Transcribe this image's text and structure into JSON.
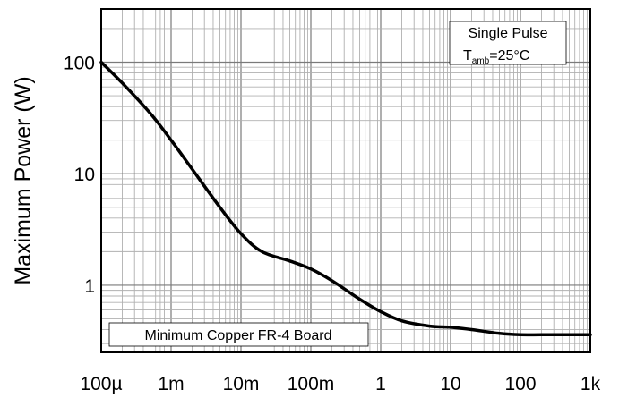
{
  "chart_data": {
    "type": "line",
    "title": "",
    "xlabel": "",
    "ylabel": "Maximum Power (W)",
    "xscale": "log",
    "yscale": "log",
    "xlim": [
      0.0001,
      1000
    ],
    "ylim": [
      0.25,
      300
    ],
    "grid": true,
    "x_tick_labels": [
      "100µ",
      "1m",
      "10m",
      "100m",
      "1",
      "10",
      "100",
      "1k"
    ],
    "x_tick_values": [
      0.0001,
      0.001,
      0.01,
      0.1,
      1,
      10,
      100,
      1000
    ],
    "y_tick_labels": [
      "1",
      "10",
      "100"
    ],
    "y_tick_values": [
      1,
      10,
      100
    ],
    "annotations": {
      "pulse": "Single Pulse",
      "tamb_main": "T",
      "tamb_sub": "amb",
      "tamb_value": "=25°C",
      "board": "Minimum Copper FR-4 Board"
    },
    "series": [
      {
        "x": [
          0.0001,
          0.0002,
          0.0005,
          0.001,
          0.002,
          0.005,
          0.01,
          0.02,
          0.05,
          0.1,
          0.2,
          0.5,
          1,
          2,
          5,
          10,
          20,
          50,
          100,
          200,
          500,
          1000
        ],
        "y": [
          100,
          65,
          35,
          20,
          11,
          5,
          2.9,
          2.0,
          1.65,
          1.4,
          1.1,
          0.75,
          0.58,
          0.48,
          0.43,
          0.42,
          0.4,
          0.37,
          0.36,
          0.36,
          0.36,
          0.36
        ]
      }
    ]
  }
}
